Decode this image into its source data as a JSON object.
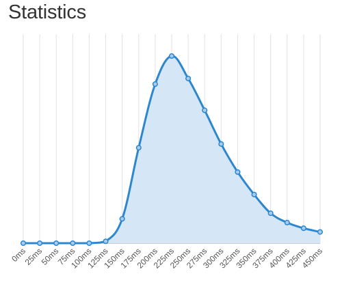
{
  "page": {
    "title": "Statistics"
  },
  "chart_data": {
    "type": "area",
    "title": "Statistics",
    "xlabel": "",
    "ylabel": "",
    "categories": [
      "0ms",
      "25ms",
      "50ms",
      "75ms",
      "100ms",
      "125ms",
      "150ms",
      "175ms",
      "200ms",
      "225ms",
      "250ms",
      "275ms",
      "300ms",
      "325ms",
      "350ms",
      "375ms",
      "400ms",
      "425ms",
      "450ms"
    ],
    "series": [
      {
        "values": [
          0,
          0,
          0,
          0,
          0,
          1,
          13,
          51,
          85,
          100,
          88,
          71,
          53,
          38,
          26,
          16,
          11,
          8,
          6
        ]
      }
    ],
    "ylim": [
      0,
      100
    ],
    "grid": {
      "vertical": true,
      "horizontal": false
    },
    "legend": "none",
    "colors": {
      "line": "#2d87cf",
      "fill": "#d5e6f6",
      "marker_fill": "#a9cbec",
      "grid": "#e2e2e2",
      "axis": "#cccccc"
    }
  }
}
